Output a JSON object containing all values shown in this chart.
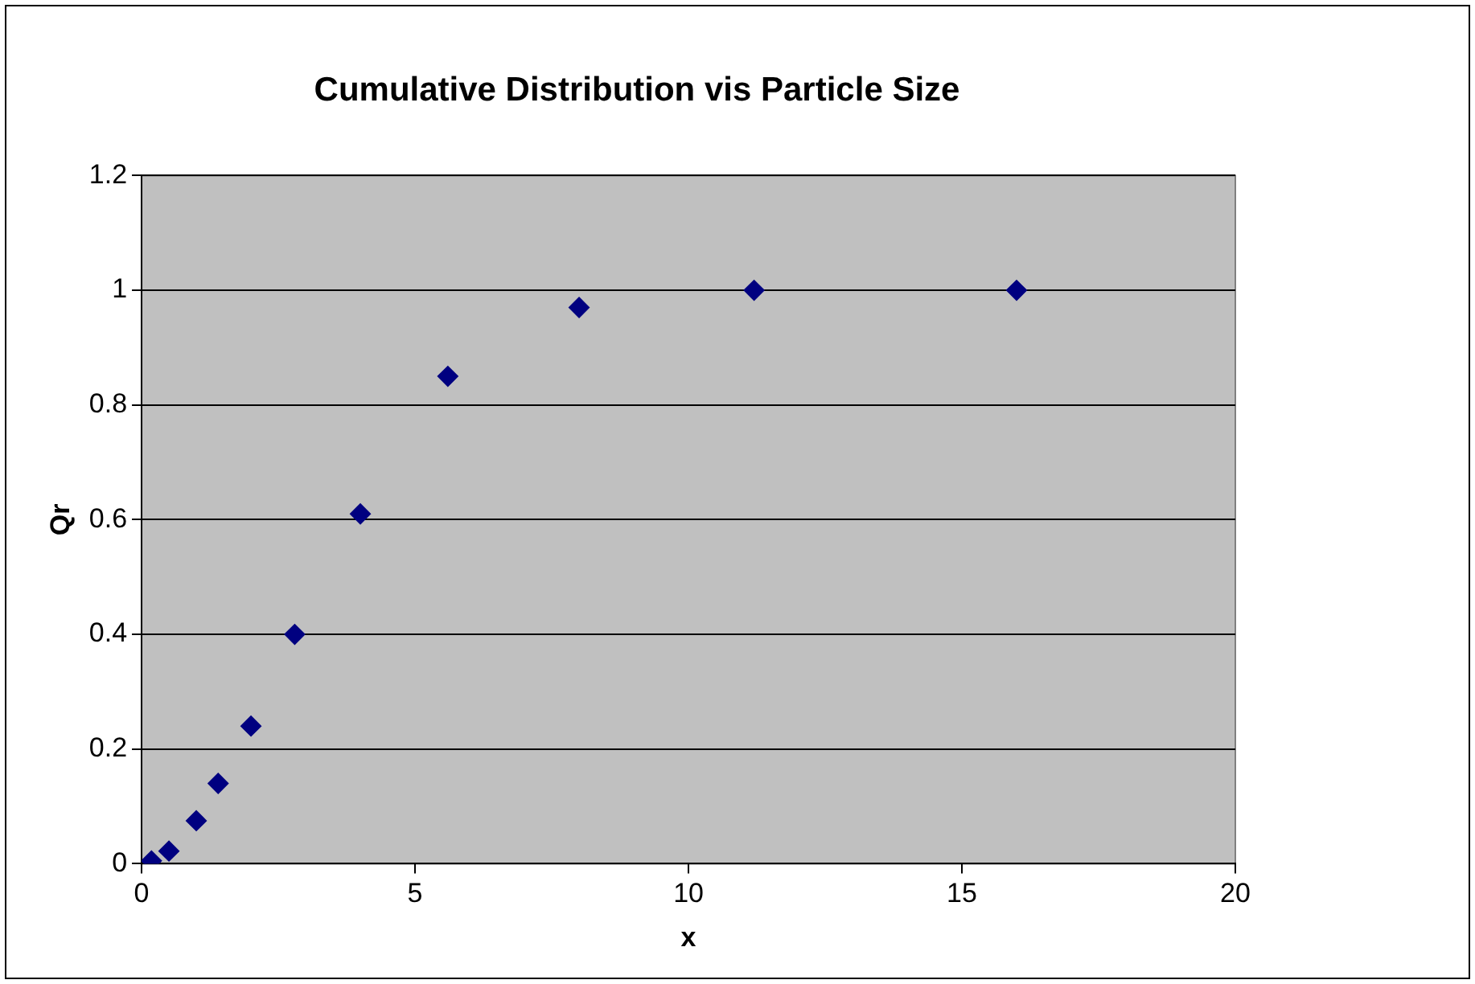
{
  "chart_data": {
    "type": "scatter",
    "title": "Cumulative Distribution vis Particle Size",
    "xlabel": "x",
    "ylabel": "Qr",
    "x": [
      0.18,
      0.5,
      1,
      1.4,
      2,
      2.8,
      4,
      5.6,
      8,
      11.2,
      16
    ],
    "series": [
      {
        "color": "#000080",
        "values": [
          0.005,
          0.022,
          0.075,
          0.14,
          0.24,
          0.4,
          0.61,
          0.85,
          0.97,
          1,
          1
        ]
      }
    ],
    "xlim": [
      0,
      20
    ],
    "xticks": [
      0,
      5,
      10,
      15,
      20
    ],
    "ylim": [
      0,
      1.2
    ],
    "yticks": [
      0,
      0.2,
      0.4,
      0.6,
      0.8,
      1,
      1.2
    ],
    "grid": "y",
    "legend": false,
    "marker": "diamond"
  }
}
